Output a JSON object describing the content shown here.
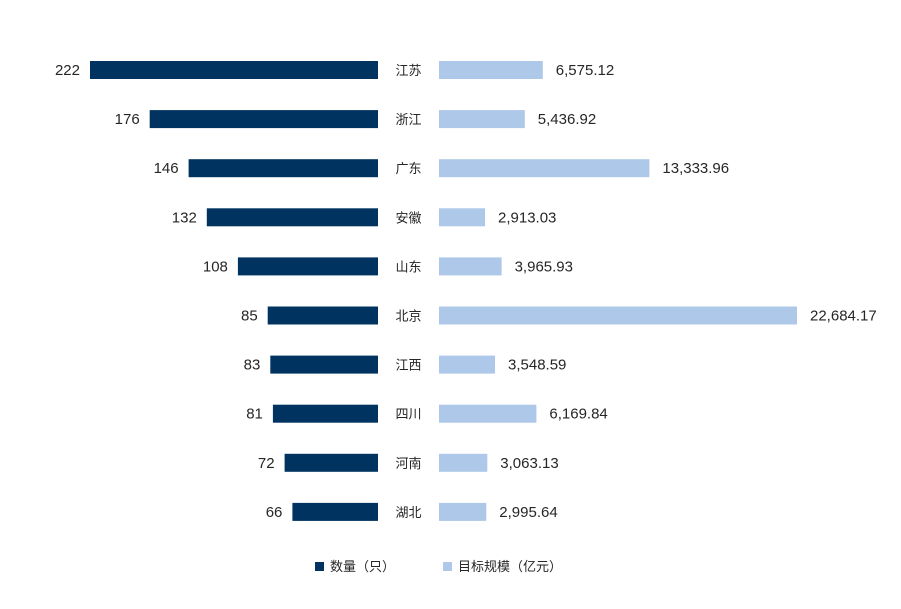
{
  "chart_data": {
    "type": "bar",
    "orientation": "horizontal-butterfly",
    "categories": [
      "江苏",
      "浙江",
      "广东",
      "安徽",
      "山东",
      "北京",
      "江西",
      "四川",
      "河南",
      "湖北"
    ],
    "series": [
      {
        "name": "数量（只）",
        "side": "left",
        "values": [
          222,
          176,
          146,
          132,
          108,
          85,
          83,
          81,
          72,
          66
        ],
        "labels": [
          "222",
          "176",
          "146",
          "132",
          "108",
          "85",
          "83",
          "81",
          "72",
          "66"
        ],
        "color": "#00335f"
      },
      {
        "name": "目标规模（亿元）",
        "side": "right",
        "values": [
          6575.12,
          5436.92,
          13333.96,
          2913.03,
          3965.93,
          22684.17,
          3548.59,
          6169.84,
          3063.13,
          2995.64
        ],
        "labels": [
          "6,575.12",
          "5,436.92",
          "13,333.96",
          "2,913.03",
          "3,965.93",
          "22,684.17",
          "3,548.59",
          "6,169.84",
          "3,063.13",
          "2,995.64"
        ],
        "color": "#adc8e8"
      }
    ],
    "title": "",
    "xlabel": "",
    "ylabel": "",
    "grid": false,
    "legend_position": "bottom"
  }
}
